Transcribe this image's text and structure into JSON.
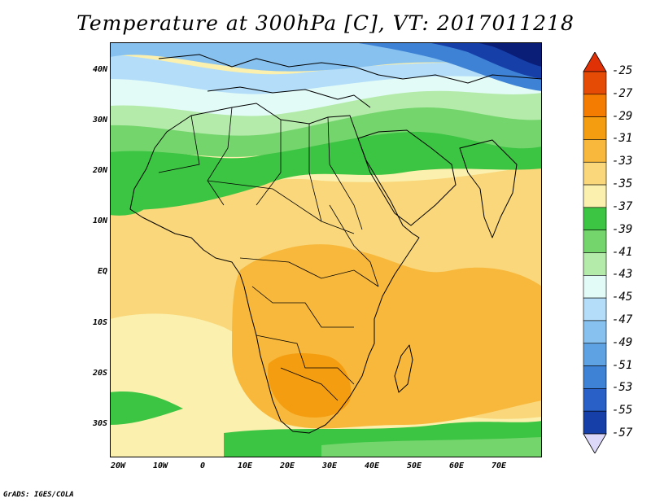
{
  "title": "Temperature at 300hPa [C], VT: 2017011218",
  "credit": "GrADS: IGES/COLA",
  "lat_labels": [
    "40N",
    "30N",
    "20N",
    "10N",
    "EQ",
    "10S",
    "20S",
    "30S"
  ],
  "lon_labels": [
    "20W",
    "10W",
    "0",
    "10E",
    "20E",
    "30E",
    "40E",
    "50E",
    "60E",
    "70E"
  ],
  "colorbar": {
    "labels": [
      "-25",
      "-27",
      "-29",
      "-31",
      "-33",
      "-35",
      "-37",
      "-39",
      "-41",
      "-43",
      "-45",
      "-47",
      "-49",
      "-51",
      "-53",
      "-55",
      "-57"
    ],
    "colors": [
      "#e64b05",
      "#f47c00",
      "#f59d10",
      "#f7b83c",
      "#f9d77a",
      "#fbf0ad",
      "#3cc443",
      "#74d56d",
      "#b4ebaa",
      "#e2fbf7",
      "#b3ddf8",
      "#87c1f0",
      "#5ea2e4",
      "#3e82d6",
      "#2860c8",
      "#163fa8",
      "#0a1e78"
    ],
    "low_color": "#dcd8fa",
    "high_color": "#e03005"
  }
}
